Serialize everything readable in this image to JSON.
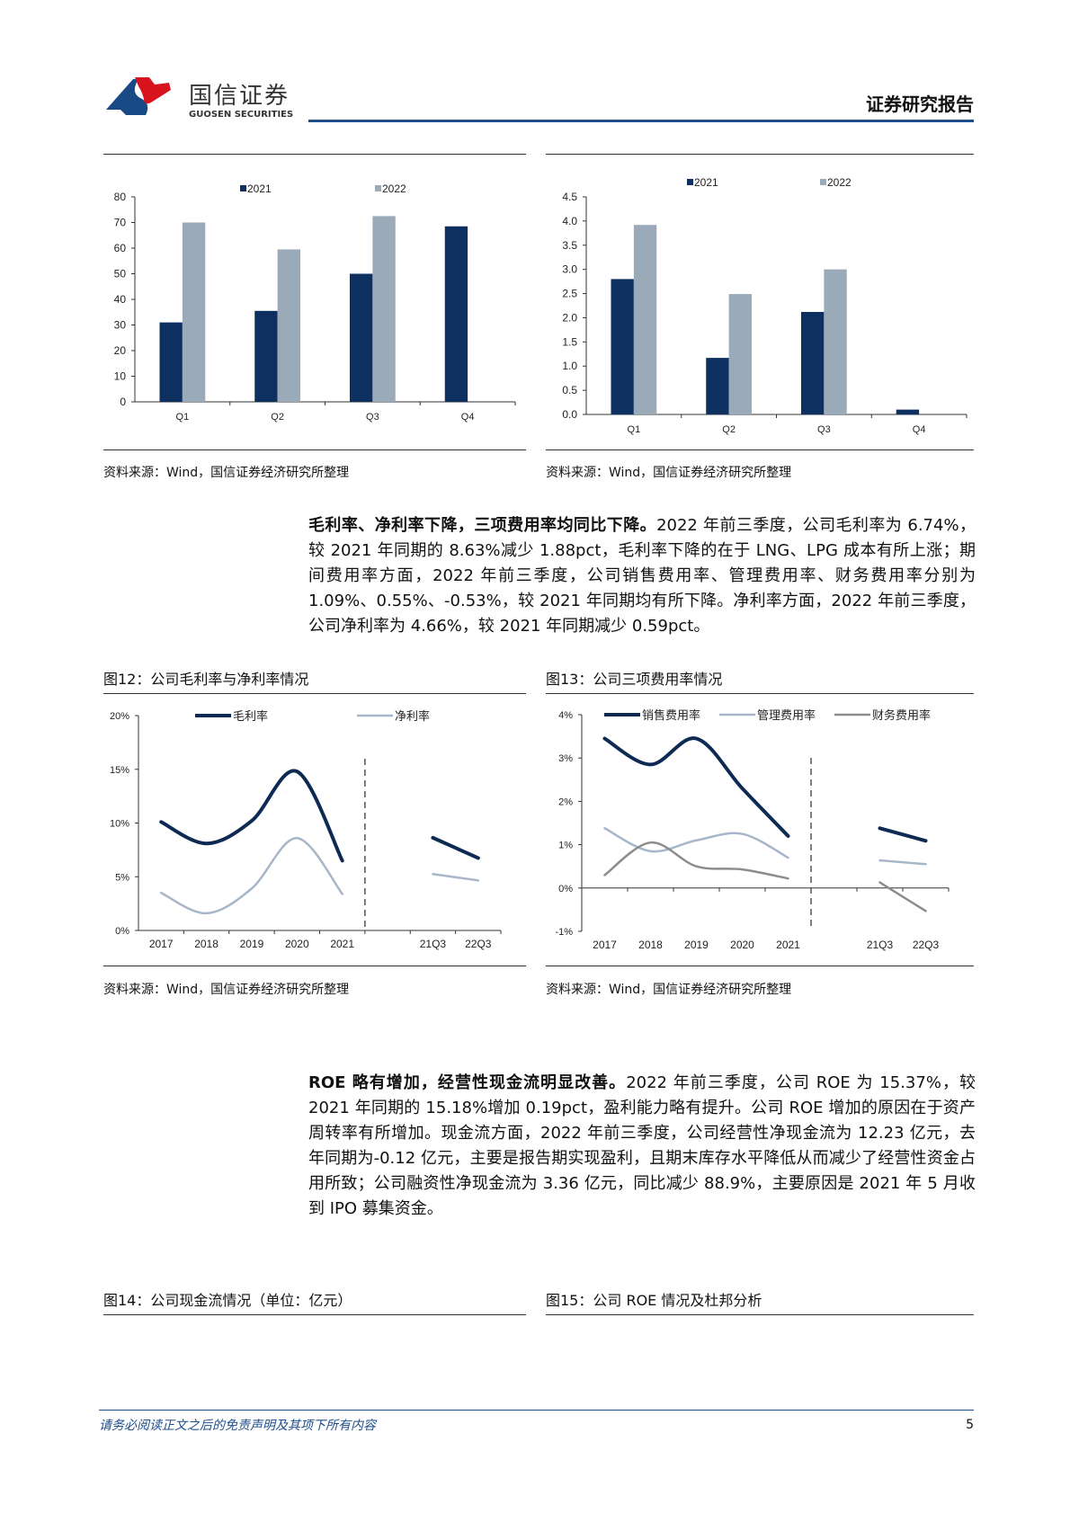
{
  "header": {
    "logo_cn": "国信证券",
    "logo_en": "GUOSEN SECURITIES",
    "report_type": "证券研究报告",
    "colors": {
      "brand_blue": "#1f4e8c",
      "brand_red": "#d7141d"
    }
  },
  "top_charts": {
    "left_source": "资料来源：Wind，国信证券经济研究所整理",
    "right_source": "资料来源：Wind，国信证券经济研究所整理"
  },
  "para1": {
    "bold": "毛利率、净利率下降，三项费用率均同比下降。",
    "text": "2022 年前三季度，公司毛利率为 6.74%，较 2021 年同期的 8.63%减少 1.88pct，毛利率下降的在于 LNG、LPG 成本有所上涨；期间费用率方面，2022 年前三季度，公司销售费用率、管理费用率、财务费用率分别为 1.09%、0.55%、-0.53%，较 2021 年同期均有所下降。净利率方面，2022 年前三季度，公司净利率为 4.66%，较 2021 年同期减少 0.59pct。"
  },
  "fig12": {
    "title": "图12：公司毛利率与净利率情况",
    "source": "资料来源：Wind，国信证券经济研究所整理"
  },
  "fig13": {
    "title": "图13：公司三项费用率情况",
    "source": "资料来源：Wind，国信证券经济研究所整理"
  },
  "para2": {
    "bold": "ROE 略有增加，经营性现金流明显改善。",
    "text": "2022 年前三季度，公司 ROE 为 15.37%，较 2021 年同期的 15.18%增加 0.19pct，盈利能力略有提升。公司 ROE 增加的原因在于资产周转率有所增加。现金流方面，2022 年前三季度，公司经营性净现金流为 12.23 亿元，去年同期为-0.12 亿元，主要是报告期实现盈利，且期末库存水平降低从而减少了经营性资金占用所致；公司融资性净现金流为 3.36 亿元，同比减少 88.9%，主要原因是 2021 年 5 月收到 IPO 募集资金。"
  },
  "fig14": {
    "title": "图14：公司现金流情况（单位：亿元）"
  },
  "fig15": {
    "title": "图15：公司 ROE 情况及杜邦分析"
  },
  "footer": {
    "disclaimer": "请务必阅读正文之后的免责声明及其项下所有内容",
    "page": "5"
  },
  "chart_data": [
    {
      "type": "bar",
      "categories": [
        "Q1",
        "Q2",
        "Q3",
        "Q4"
      ],
      "series": [
        {
          "name": "2021",
          "values": [
            31,
            35.5,
            50,
            68.5
          ],
          "color": "#0d3061"
        },
        {
          "name": "2022",
          "values": [
            70,
            59.5,
            72.5,
            null
          ],
          "color": "#9aaab9"
        }
      ],
      "yticks": [
        "0",
        "10",
        "20",
        "30",
        "40",
        "50",
        "60",
        "70",
        "80"
      ],
      "ylim": [
        0,
        80
      ],
      "legend": "top"
    },
    {
      "type": "bar",
      "categories": [
        "Q1",
        "Q2",
        "Q3",
        "Q4"
      ],
      "series": [
        {
          "name": "2021",
          "values": [
            2.8,
            1.17,
            2.12,
            0.1
          ],
          "color": "#0d3061"
        },
        {
          "name": "2022",
          "values": [
            3.92,
            2.49,
            3.0,
            null
          ],
          "color": "#9aaab9"
        }
      ],
      "yticks": [
        "0.0",
        "0.5",
        "1.0",
        "1.5",
        "2.0",
        "2.5",
        "3.0",
        "3.5",
        "4.0",
        "4.5"
      ],
      "ylim": [
        0,
        4.5
      ],
      "legend": "top"
    },
    {
      "type": "line",
      "categories": [
        "2017",
        "2018",
        "2019",
        "2020",
        "2021",
        "",
        "21Q3",
        "22Q3"
      ],
      "series": [
        {
          "name": "毛利率",
          "values": [
            10.1,
            8.1,
            10.2,
            14.8,
            6.5,
            null,
            8.63,
            6.74
          ],
          "color": "#0d2a52"
        },
        {
          "name": "净利率",
          "values": [
            3.5,
            1.6,
            3.9,
            8.6,
            3.4,
            null,
            5.25,
            4.66
          ],
          "color": "#a7b6c8"
        }
      ],
      "yticks": [
        "0%",
        "5%",
        "10%",
        "15%",
        "20%"
      ],
      "ylim": [
        0,
        20
      ],
      "unit": "%",
      "legend": "top"
    },
    {
      "type": "line",
      "categories": [
        "2017",
        "2018",
        "2019",
        "2020",
        "2021",
        "",
        "21Q3",
        "22Q3"
      ],
      "series": [
        {
          "name": "销售费用率",
          "values": [
            3.45,
            2.85,
            3.45,
            2.3,
            1.2,
            null,
            1.38,
            1.09
          ],
          "color": "#0d2a52"
        },
        {
          "name": "管理费用率",
          "values": [
            1.38,
            0.85,
            1.1,
            1.25,
            0.7,
            null,
            0.64,
            0.55
          ],
          "color": "#a7b6c8"
        },
        {
          "name": "财务费用率",
          "values": [
            0.3,
            1.05,
            0.5,
            0.43,
            0.22,
            null,
            0.13,
            -0.53
          ],
          "color": "#8c8c8c"
        }
      ],
      "yticks": [
        "-1%",
        "0%",
        "1%",
        "2%",
        "3%",
        "4%"
      ],
      "ylim": [
        -1,
        4
      ],
      "unit": "%",
      "legend": "top"
    }
  ]
}
